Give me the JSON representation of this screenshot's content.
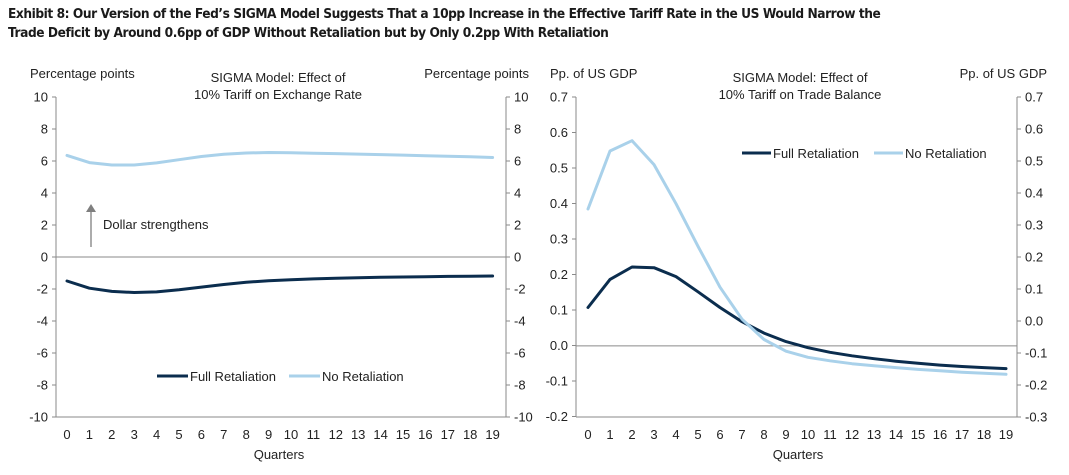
{
  "exhibit": {
    "title_line1": "Exhibit 8: Our Version of the Fed’s SIGMA Model Suggests That a 10pp Increase in the Effective Tariff Rate in the US Would Narrow the",
    "title_line2": "Trade Deficit by Around 0.6pp of GDP Without Retaliation but by Only 0.2pp With Retaliation"
  },
  "colors": {
    "full_retaliation": "#0b2d4e",
    "no_retaliation": "#a9d1ea",
    "axis": "#8a8a8a",
    "annotation_arrow": "#7f7f7f"
  },
  "chart_data": [
    {
      "type": "line",
      "title_line1": "SIGMA Model: Effect of",
      "title_line2": "10% Tariff on Exchange Rate",
      "ylabel_left": "Percentage points",
      "ylabel_right": "Percentage points",
      "xlabel": "Quarters",
      "ylim": [
        -10,
        10
      ],
      "yticks": [
        10,
        8,
        6,
        4,
        2,
        0,
        -2,
        -4,
        -6,
        -8,
        -10
      ],
      "x": [
        0,
        1,
        2,
        3,
        4,
        5,
        6,
        7,
        8,
        9,
        10,
        11,
        12,
        13,
        14,
        15,
        16,
        17,
        18,
        19
      ],
      "annotation": "Dollar strengthens",
      "legend_position": "bottom-center",
      "series": [
        {
          "name": "Full Retaliation",
          "values": [
            -1.5,
            -1.95,
            -2.15,
            -2.22,
            -2.18,
            -2.05,
            -1.88,
            -1.72,
            -1.58,
            -1.48,
            -1.42,
            -1.37,
            -1.33,
            -1.3,
            -1.27,
            -1.25,
            -1.23,
            -1.21,
            -1.2,
            -1.19
          ]
        },
        {
          "name": "No Retaliation",
          "values": [
            6.35,
            5.9,
            5.75,
            5.75,
            5.88,
            6.08,
            6.28,
            6.42,
            6.5,
            6.53,
            6.52,
            6.49,
            6.46,
            6.43,
            6.4,
            6.37,
            6.33,
            6.3,
            6.26,
            6.22
          ]
        }
      ]
    },
    {
      "type": "line",
      "title_line1": "SIGMA Model: Effect of",
      "title_line2": "10% Tariff on Trade Balance",
      "ylabel_left": "Pp. of US GDP",
      "ylabel_right": "Pp. of US GDP",
      "xlabel": "Quarters",
      "ylim": [
        -0.2,
        0.7
      ],
      "yticks_left": [
        "0.7",
        "0.6",
        "0.5",
        "0.4",
        "0.3",
        "0.2",
        "0.1",
        "0.0",
        "-0.1",
        "-0.2"
      ],
      "yticks_right": [
        "0.7",
        "0.6",
        "0.5",
        "0.4",
        "0.3",
        "0.2",
        "0.1",
        "0.0",
        "-0.1",
        "-0.2",
        "-0.3"
      ],
      "right_axis_range": [
        -0.3,
        0.7
      ],
      "x": [
        0,
        1,
        2,
        3,
        4,
        5,
        6,
        7,
        8,
        9,
        10,
        11,
        12,
        13,
        14,
        15,
        16,
        17,
        18,
        19
      ],
      "legend_position": "top-right",
      "series": [
        {
          "name": "Full Retaliation",
          "values": [
            0.108,
            0.187,
            0.222,
            0.22,
            0.195,
            0.152,
            0.108,
            0.068,
            0.036,
            0.012,
            -0.005,
            -0.018,
            -0.028,
            -0.036,
            -0.043,
            -0.049,
            -0.054,
            -0.058,
            -0.061,
            -0.064
          ]
        },
        {
          "name": "No Retaliation",
          "values": [
            0.385,
            0.548,
            0.577,
            0.51,
            0.4,
            0.28,
            0.165,
            0.075,
            0.018,
            -0.015,
            -0.032,
            -0.042,
            -0.05,
            -0.056,
            -0.061,
            -0.066,
            -0.07,
            -0.074,
            -0.077,
            -0.08
          ]
        }
      ]
    }
  ]
}
